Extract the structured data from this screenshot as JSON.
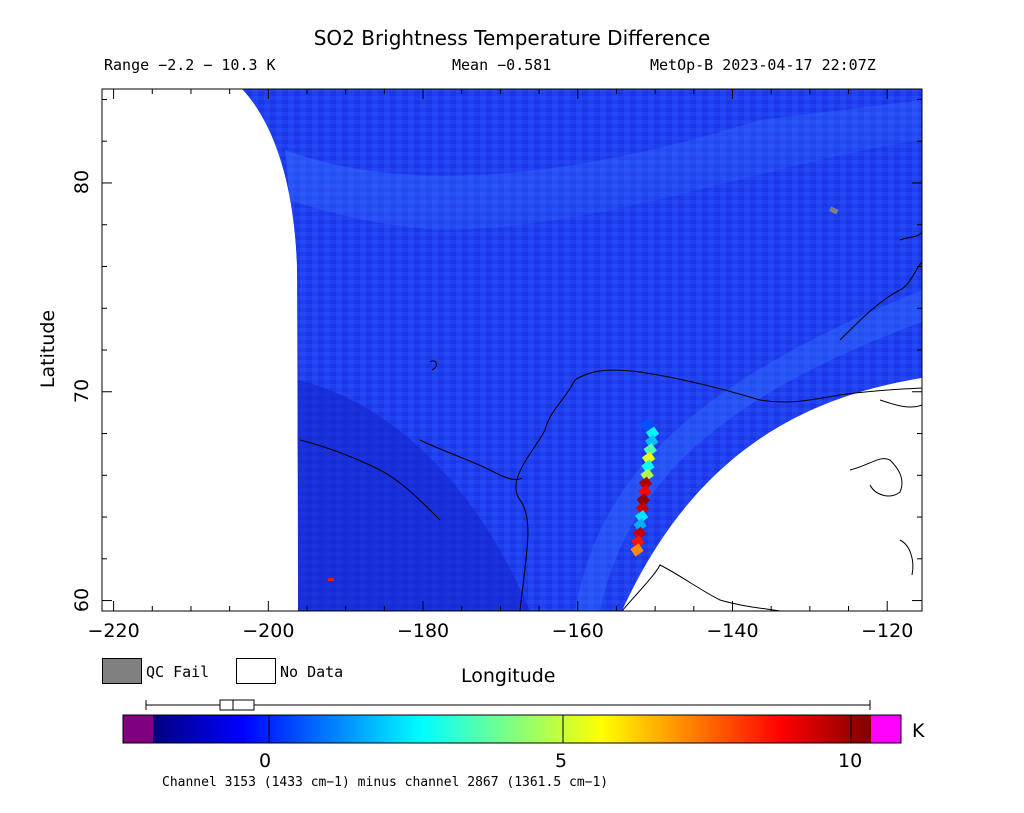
{
  "title": "SO2 Brightness Temperature Difference",
  "range_text": "Range −2.2 − 10.3 K",
  "mean_text": "Mean −0.581",
  "sat_text": "MetOp-B 2023-04-17 22:07Z",
  "legend": {
    "qc_fail": "QC Fail",
    "no_data": "No Data",
    "qc_fail_color": "#808080",
    "no_data_color": "#ffffff"
  },
  "colorbar": {
    "unit": "K",
    "footer": "Channel 3153 (1433 cm−1) minus channel 2867 (1361.5 cm−1)",
    "ticks": [
      "0",
      "5",
      "10"
    ],
    "under_color": "#800080",
    "over_color": "#ff00ff",
    "stops": [
      "#000080",
      "#0000ff",
      "#0080ff",
      "#00ffff",
      "#80ff80",
      "#ffff00",
      "#ff8000",
      "#ff0000",
      "#800000"
    ]
  },
  "chart_data": {
    "type": "heatmap",
    "title": "SO2 Brightness Temperature Difference",
    "xlabel": "Longitude",
    "ylabel": "Latitude",
    "xlim": [
      -221.5,
      -115.5
    ],
    "ylim": [
      59.5,
      84.5
    ],
    "x_ticks": [
      "−220",
      "−200",
      "−180",
      "−160",
      "−140",
      "−120"
    ],
    "y_ticks": [
      "60",
      "70",
      "80"
    ],
    "x_tick_values": [
      -220,
      -200,
      -180,
      -160,
      -140,
      -120
    ],
    "y_tick_values": [
      60,
      70,
      80
    ],
    "value_range": [
      -2.2,
      10.3
    ],
    "mean": -0.581,
    "units": "K",
    "background_color": "#1e3cf0",
    "plume": [
      {
        "lon": -150.3,
        "lat": 68.0,
        "value": 3.2
      },
      {
        "lon": -150.4,
        "lat": 67.6,
        "value": 2.6
      },
      {
        "lon": -150.6,
        "lat": 67.2,
        "value": 4.2
      },
      {
        "lon": -150.8,
        "lat": 66.8,
        "value": 5.8
      },
      {
        "lon": -150.9,
        "lat": 66.4,
        "value": 3.4
      },
      {
        "lon": -151.0,
        "lat": 66.0,
        "value": 5.2
      },
      {
        "lon": -151.2,
        "lat": 65.6,
        "value": 9.8
      },
      {
        "lon": -151.3,
        "lat": 65.2,
        "value": 8.9
      },
      {
        "lon": -151.5,
        "lat": 64.8,
        "value": 10.1
      },
      {
        "lon": -151.6,
        "lat": 64.4,
        "value": 9.5
      },
      {
        "lon": -151.7,
        "lat": 64.0,
        "value": 3.0
      },
      {
        "lon": -151.9,
        "lat": 63.6,
        "value": 2.4
      },
      {
        "lon": -152.0,
        "lat": 63.2,
        "value": 9.6
      },
      {
        "lon": -152.2,
        "lat": 62.8,
        "value": 8.7
      },
      {
        "lon": -152.3,
        "lat": 62.4,
        "value": 7.4
      },
      {
        "lon": -151.0,
        "lat": 68.4,
        "value": 1.4
      }
    ]
  }
}
